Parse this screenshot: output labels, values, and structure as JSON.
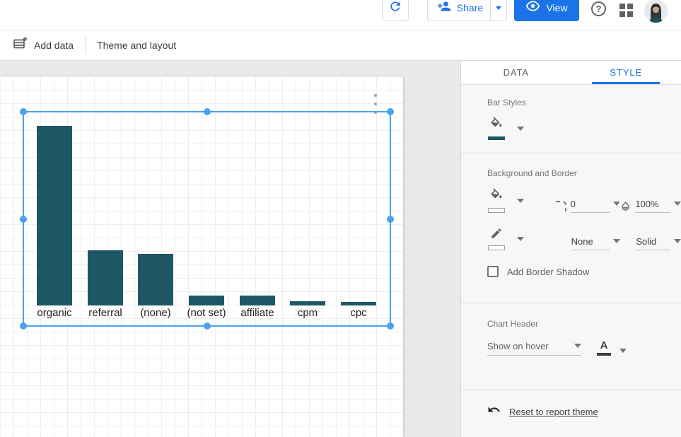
{
  "colors": {
    "accent_blue": "#1a73e8",
    "selection_blue": "#4aa1ef",
    "bar_teal": "#1d5766"
  },
  "topbar": {
    "share_label": "Share",
    "view_label": "View",
    "help_glyph": "?"
  },
  "toolbar": {
    "add_data_label": "Add data",
    "theme_layout_label": "Theme and layout"
  },
  "panel": {
    "tabs": [
      {
        "label": "DATA",
        "active": false
      },
      {
        "label": "STYLE",
        "active": true
      }
    ],
    "bar_styles": {
      "title": "Bar Styles",
      "color_value": "#1d5766"
    },
    "background_border": {
      "title": "Background and Border",
      "corner_radius_value": "0",
      "opacity_value": "100%",
      "border_weight_value": "None",
      "border_style_value": "Solid",
      "shadow_label": "Add Border Shadow",
      "shadow_checked": false
    },
    "chart_header": {
      "title": "Chart Header",
      "visibility_value": "Show on hover",
      "text_color_glyph": "A"
    },
    "reset_label": "Reset to report theme"
  },
  "chart_data": {
    "type": "bar",
    "title": "",
    "categories": [
      "organic",
      "referral",
      "(none)",
      "(not set)",
      "affiliate",
      "cpm",
      "cpc"
    ],
    "values": [
      254,
      78,
      73,
      14,
      14,
      6,
      5
    ],
    "value_note": "bar heights estimated in px; no value axis or data labels visible",
    "bar_color": "#1d5766",
    "orientation": "vertical",
    "axes_visible": false,
    "grid": false,
    "legend": "none"
  }
}
